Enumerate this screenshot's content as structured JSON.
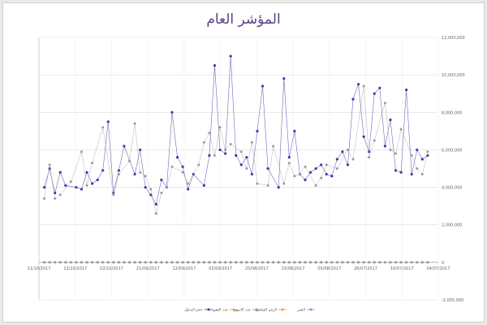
{
  "chart_data": {
    "type": "line",
    "title": "المؤشر العام",
    "xlabel": "",
    "ylabel": "",
    "ylim": [
      -2000000,
      12000000
    ],
    "y_ticks": [
      -2000000,
      0,
      2000000,
      4000000,
      6000000,
      8000000,
      10000000,
      12000000
    ],
    "y_tick_labels": [
      "-2,000,000",
      "0",
      "2,000,000",
      "4,000,000",
      "6,000,000",
      "8,000,000",
      "10,000,000",
      "12,000,000"
    ],
    "y_axis_side": "right",
    "grid": true,
    "x_tick_labels": [
      "21/10/2017",
      "12/10/2017",
      "02/10/2017",
      "21/09/2017",
      "12/09/2017",
      "03/09/2017",
      "25/08/2017",
      "15/08/2017",
      "05/08/2017",
      "26/07/2017",
      "16/07/2017",
      "04/07/2017"
    ],
    "legend_position": "bottom",
    "legend": [
      "حجم التداول",
      "عدد العقود",
      "عدد الاسهم",
      "الرقم القياسي",
      "التغير"
    ],
    "colors": {
      "primary": "#3b3ba8",
      "secondary": "#9a9a9a",
      "tertiary": "#8a8ad0",
      "orange": "#f0a030",
      "grid": "#dddddd",
      "title": "#5b3f86"
    },
    "series": [
      {
        "name": "حجم التداول",
        "x": [
          1,
          2,
          3,
          4,
          5,
          7,
          8,
          9,
          10,
          11,
          12,
          13,
          14,
          15,
          16,
          18,
          19,
          20,
          21,
          22,
          23,
          24,
          25,
          26,
          27,
          28,
          29,
          31,
          32,
          33,
          34,
          35,
          36,
          37,
          38,
          39,
          40,
          41,
          42,
          43,
          45,
          46,
          47,
          48,
          49,
          50,
          51,
          52,
          53,
          54,
          55,
          56,
          57,
          58,
          59,
          60,
          61,
          62,
          63,
          64,
          65,
          66,
          67,
          68,
          69,
          70,
          71,
          72,
          73
        ],
        "y": [
          4000000,
          5000000,
          3700000,
          4800000,
          4100000,
          4000000,
          3900000,
          4800000,
          4200000,
          4400000,
          4900000,
          7500000,
          3700000,
          4900000,
          6200000,
          4700000,
          6000000,
          4000000,
          3600000,
          3100000,
          4400000,
          4000000,
          8000000,
          5600000,
          5100000,
          3900000,
          4700000,
          4100000,
          5700000,
          10500000,
          6000000,
          5800000,
          11000000,
          5700000,
          5200000,
          5600000,
          4700000,
          7000000,
          9400000,
          5000000,
          4000000,
          9800000,
          5600000,
          7000000,
          4700000,
          4400000,
          4800000,
          5000000,
          5200000,
          4700000,
          4600000,
          5500000,
          5900000,
          5200000,
          8700000,
          9500000,
          6700000,
          5900000,
          9000000,
          9300000,
          6200000,
          7600000,
          4900000,
          4800000,
          9200000,
          4700000,
          6000000,
          5500000,
          5700000
        ]
      },
      {
        "name": "عدد العقود",
        "x": [
          1,
          2,
          3,
          4,
          6,
          8,
          9,
          10,
          12,
          14,
          15,
          17,
          18,
          19,
          20,
          21,
          22,
          23,
          24,
          25,
          27,
          28,
          30,
          31,
          32,
          33,
          34,
          35,
          36,
          38,
          39,
          40,
          41,
          43,
          44,
          46,
          47,
          48,
          49,
          50,
          52,
          53,
          54,
          56,
          58,
          59,
          61,
          62,
          63,
          65,
          66,
          67,
          68,
          70,
          71,
          72,
          73
        ],
        "y": [
          3400000,
          5200000,
          3400000,
          3600000,
          4300000,
          5900000,
          4100000,
          5300000,
          7200000,
          3600000,
          4700000,
          5400000,
          7400000,
          4800000,
          4600000,
          3900000,
          2600000,
          3700000,
          4000000,
          5100000,
          4800000,
          4200000,
          5200000,
          6400000,
          6900000,
          5700000,
          7200000,
          6000000,
          6300000,
          5900000,
          5000000,
          6400000,
          4200000,
          4100000,
          6200000,
          4200000,
          5300000,
          4600000,
          4700000,
          5100000,
          4100000,
          4500000,
          5200000,
          5000000,
          6000000,
          5500000,
          9400000,
          5600000,
          6500000,
          8500000,
          6000000,
          5800000,
          7100000,
          5700000,
          5000000,
          4700000,
          5900000
        ]
      },
      {
        "name": "عدد الاسهم",
        "x": [
          1,
          2,
          3,
          4,
          5,
          6,
          7,
          8,
          9,
          10,
          11,
          12,
          13,
          14,
          15,
          16,
          17,
          18,
          19,
          20,
          21,
          22,
          23,
          24,
          25,
          26,
          27,
          28,
          29,
          30,
          31,
          32,
          33,
          34,
          35,
          36,
          37,
          38,
          39,
          40,
          41,
          42,
          43,
          44,
          45,
          46,
          47,
          48,
          49,
          50,
          51,
          52,
          53,
          54,
          55,
          56,
          57,
          58,
          59,
          60,
          61,
          62,
          63,
          64,
          65,
          66,
          67,
          68,
          69,
          70,
          71,
          72,
          73
        ],
        "y": [
          0,
          0,
          0,
          0,
          0,
          0,
          0,
          0,
          0,
          0,
          0,
          0,
          0,
          0,
          0,
          0,
          0,
          0,
          0,
          0,
          0,
          0,
          0,
          0,
          0,
          0,
          0,
          0,
          0,
          0,
          0,
          0,
          0,
          0,
          0,
          0,
          0,
          0,
          0,
          0,
          0,
          0,
          0,
          0,
          0,
          0,
          0,
          0,
          0,
          0,
          0,
          0,
          0,
          0,
          0,
          0,
          0,
          0,
          0,
          0,
          0,
          0,
          0,
          0,
          0,
          0,
          0,
          0,
          0,
          0,
          0,
          0,
          0
        ]
      }
    ]
  }
}
